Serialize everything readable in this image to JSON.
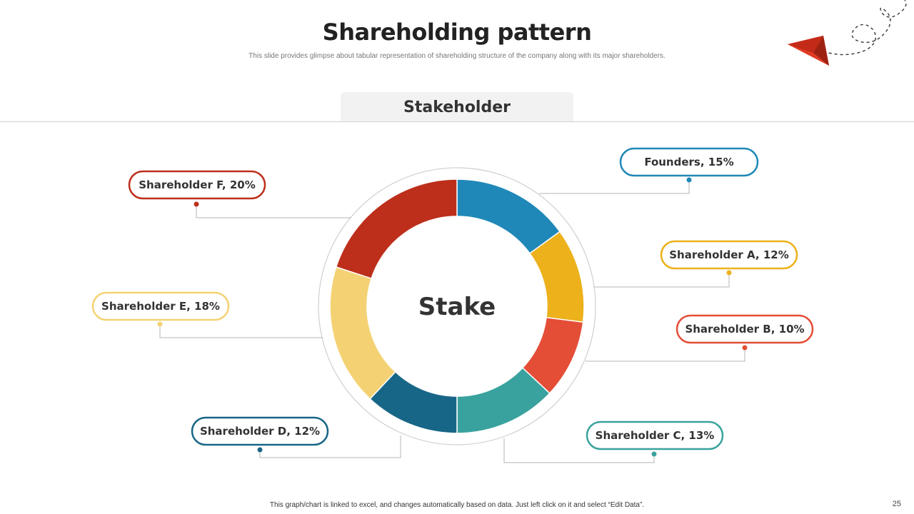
{
  "slide": {
    "title": "Shareholding pattern",
    "subtitle": "This slide provides glimpse about tabular representation of shareholding structure of the company along with its major shareholders.",
    "tab_label": "Stakeholder",
    "footer_note": "This graph/chart is linked to excel, and changes automatically based on data. Just left click on it and select “Edit Data”.",
    "page_number": "25",
    "decoration_icon": "paper-plane-icon"
  },
  "chart_data": {
    "type": "pie",
    "center_label": "Stake",
    "slices": [
      {
        "name": "Founders",
        "value": 15,
        "label": "Founders, 15%",
        "color": "#1f88b8"
      },
      {
        "name": "Shareholder A",
        "value": 12,
        "label": "Shareholder A, 12%",
        "color": "#ecb11b"
      },
      {
        "name": "Shareholder B",
        "value": 10,
        "label": "Shareholder B, 10%",
        "color": "#e44e37"
      },
      {
        "name": "Shareholder C",
        "value": 13,
        "label": "Shareholder C, 13%",
        "color": "#3aa29e"
      },
      {
        "name": "Shareholder D",
        "value": 12,
        "label": "Shareholder D, 12%",
        "color": "#186687"
      },
      {
        "name": "Shareholder E",
        "value": 18,
        "label": "Shareholder E, 18%",
        "color": "#f4d274"
      },
      {
        "name": "Shareholder F",
        "value": 20,
        "label": "Shareholder F, 20%",
        "color": "#bd2f1b"
      }
    ]
  }
}
